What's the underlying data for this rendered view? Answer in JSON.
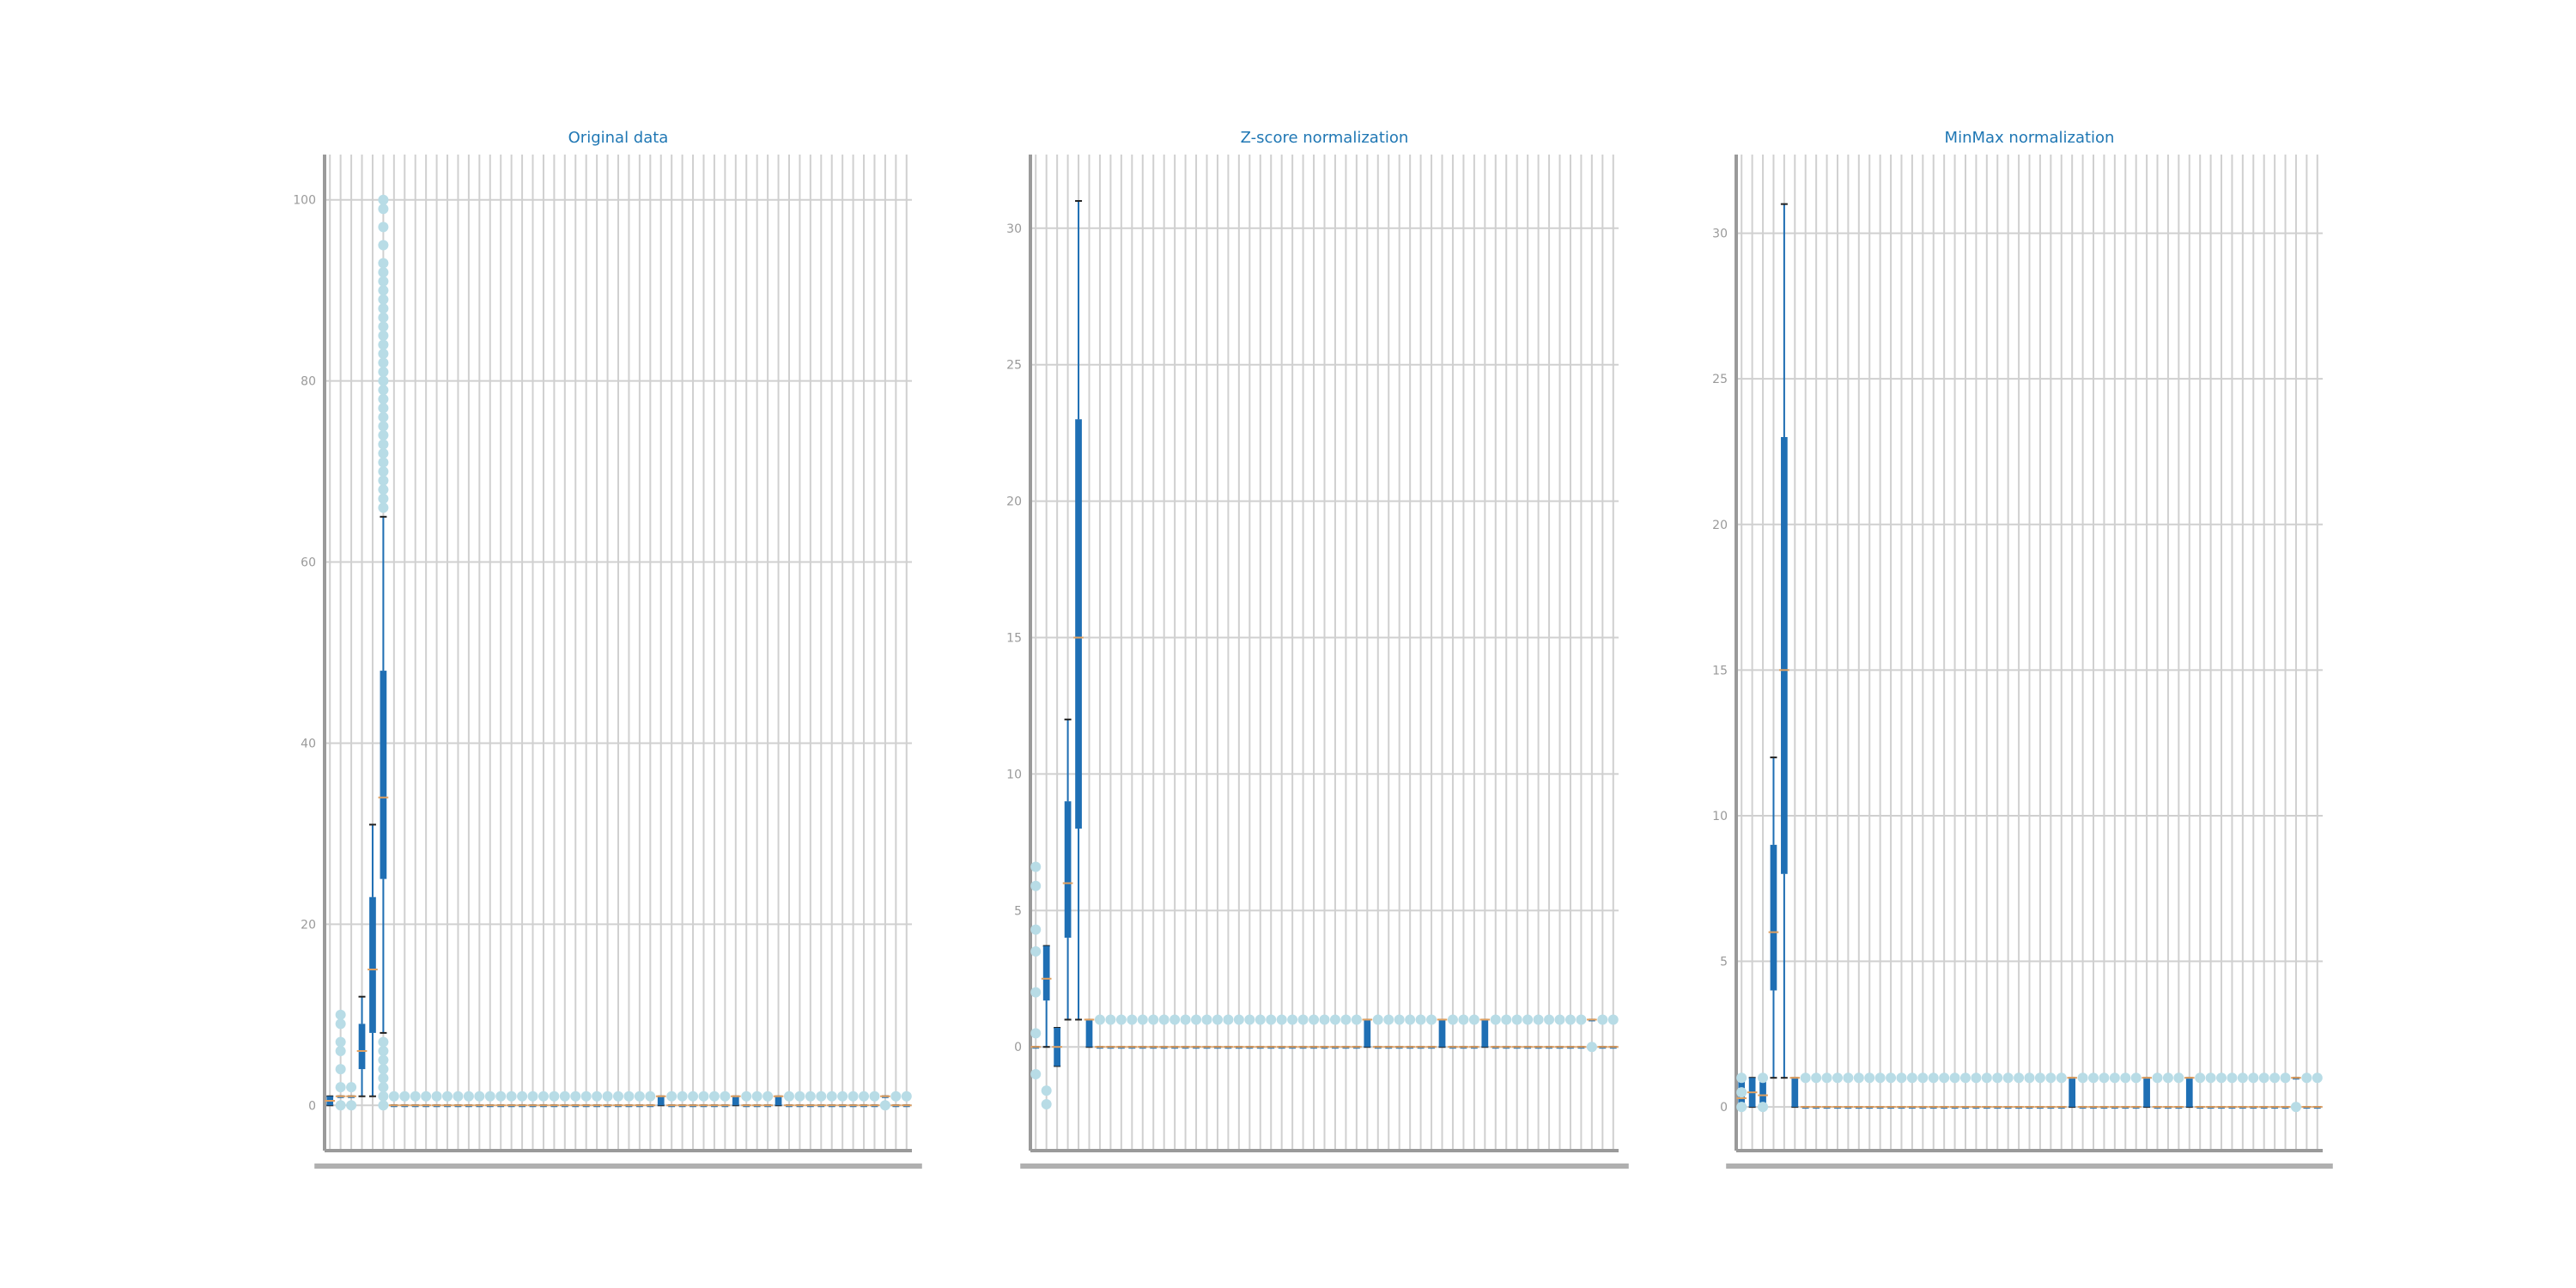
{
  "chart_data": [
    {
      "type": "box",
      "title": "Original data",
      "ylim": [
        -5,
        105
      ],
      "yticks": [
        0,
        20,
        40,
        60,
        80,
        100
      ],
      "grid": true,
      "n_columns": 55,
      "boxes": [
        {
          "index": 0,
          "q1": 0,
          "median": 0.5,
          "q3": 1,
          "whisker_low": 0,
          "whisker_high": 1,
          "outliers": []
        },
        {
          "index": 1,
          "q1": 1,
          "median": 1,
          "q3": 1,
          "whisker_low": 1,
          "whisker_high": 1,
          "outliers": [
            0,
            2,
            4,
            6,
            7,
            9,
            10
          ]
        },
        {
          "index": 2,
          "q1": 1,
          "median": 1,
          "q3": 1,
          "whisker_low": 1,
          "whisker_high": 1,
          "outliers": [
            0,
            2
          ]
        },
        {
          "index": 3,
          "q1": 4,
          "median": 6,
          "q3": 9,
          "whisker_low": 1,
          "whisker_high": 12,
          "outliers": []
        },
        {
          "index": 4,
          "q1": 8,
          "median": 15,
          "q3": 23,
          "whisker_low": 1,
          "whisker_high": 31,
          "outliers": []
        },
        {
          "index": 5,
          "q1": 25,
          "median": 34,
          "q3": 48,
          "whisker_low": 8,
          "whisker_high": 65,
          "outliers": [
            0,
            1,
            2,
            3,
            4,
            5,
            6,
            7,
            66,
            67,
            68,
            69,
            70,
            71,
            72,
            73,
            74,
            75,
            76,
            77,
            78,
            79,
            80,
            81,
            82,
            83,
            84,
            85,
            86,
            87,
            88,
            89,
            90,
            91,
            92,
            93,
            95,
            97,
            99,
            100
          ]
        },
        {
          "index": 31,
          "q1": 0,
          "median": 1,
          "q3": 1,
          "whisker_low": 0,
          "whisker_high": 1,
          "outliers": []
        },
        {
          "index": 38,
          "q1": 0,
          "median": 1,
          "q3": 1,
          "whisker_low": 0,
          "whisker_high": 1,
          "outliers": []
        },
        {
          "index": 42,
          "q1": 0,
          "median": 1,
          "q3": 1,
          "whisker_low": 0,
          "whisker_high": 1,
          "outliers": []
        },
        {
          "index": 52,
          "q1": 1,
          "median": 1,
          "q3": 1,
          "whisker_low": 1,
          "whisker_high": 1,
          "outliers": [
            0
          ]
        }
      ],
      "default_box": {
        "q1": 0,
        "median": 0,
        "q3": 0,
        "whisker_low": 0,
        "whisker_high": 0,
        "outliers": [
          1
        ]
      }
    },
    {
      "type": "box",
      "title": "Z-score normalization",
      "ylim": [
        -3.8,
        32.7
      ],
      "yticks": [
        0,
        5,
        10,
        15,
        20,
        25,
        30
      ],
      "grid": true,
      "n_columns": 55,
      "boxes": [
        {
          "index": 0,
          "q1": 0,
          "median": 0,
          "q3": 0,
          "whisker_low": 0,
          "whisker_high": 0,
          "outliers": [
            -1,
            0.5,
            2,
            3.5,
            4.3,
            5.9,
            6.6
          ]
        },
        {
          "index": 1,
          "q1": 1.7,
          "median": 2.5,
          "q3": 3.7,
          "whisker_low": 0,
          "whisker_high": 3.7,
          "outliers": [
            -1.6,
            -2.1
          ]
        },
        {
          "index": 2,
          "q1": -0.7,
          "median": 0,
          "q3": 0.7,
          "whisker_low": -0.7,
          "whisker_high": 0.7,
          "outliers": []
        },
        {
          "index": 3,
          "q1": 4,
          "median": 6,
          "q3": 9,
          "whisker_low": 1,
          "whisker_high": 12,
          "outliers": []
        },
        {
          "index": 4,
          "q1": 8,
          "median": 15,
          "q3": 23,
          "whisker_low": 1,
          "whisker_high": 31,
          "outliers": []
        },
        {
          "index": 5,
          "q1": 0,
          "median": 1,
          "q3": 1,
          "whisker_low": 0,
          "whisker_high": 1,
          "outliers": []
        },
        {
          "index": 31,
          "q1": 0,
          "median": 1,
          "q3": 1,
          "whisker_low": 0,
          "whisker_high": 1,
          "outliers": []
        },
        {
          "index": 38,
          "q1": 0,
          "median": 1,
          "q3": 1,
          "whisker_low": 0,
          "whisker_high": 1,
          "outliers": []
        },
        {
          "index": 42,
          "q1": 0,
          "median": 1,
          "q3": 1,
          "whisker_low": 0,
          "whisker_high": 1,
          "outliers": []
        },
        {
          "index": 52,
          "q1": 1,
          "median": 1,
          "q3": 1,
          "whisker_low": 1,
          "whisker_high": 1,
          "outliers": [
            0
          ]
        }
      ],
      "default_box": {
        "q1": 0,
        "median": 0,
        "q3": 0,
        "whisker_low": 0,
        "whisker_high": 0,
        "outliers": [
          1
        ]
      }
    },
    {
      "type": "box",
      "title": "MinMax normalization",
      "ylim": [
        -1.5,
        32.7
      ],
      "yticks": [
        0,
        5,
        10,
        15,
        20,
        25,
        30
      ],
      "grid": true,
      "n_columns": 55,
      "boxes": [
        {
          "index": 0,
          "q1": 0,
          "median": 0.3,
          "q3": 1,
          "whisker_low": 0,
          "whisker_high": 1,
          "outliers": [
            0,
            0.5,
            1
          ]
        },
        {
          "index": 1,
          "q1": 0,
          "median": 0.5,
          "q3": 1,
          "whisker_low": 0,
          "whisker_high": 1,
          "outliers": []
        },
        {
          "index": 2,
          "q1": 0,
          "median": 0.4,
          "q3": 1,
          "whisker_low": 0,
          "whisker_high": 1,
          "outliers": [
            0,
            1
          ]
        },
        {
          "index": 3,
          "q1": 4,
          "median": 6,
          "q3": 9,
          "whisker_low": 1,
          "whisker_high": 12,
          "outliers": []
        },
        {
          "index": 4,
          "q1": 8,
          "median": 15,
          "q3": 23,
          "whisker_low": 1,
          "whisker_high": 31,
          "outliers": []
        },
        {
          "index": 5,
          "q1": 0,
          "median": 1,
          "q3": 1,
          "whisker_low": 0,
          "whisker_high": 1,
          "outliers": []
        },
        {
          "index": 31,
          "q1": 0,
          "median": 1,
          "q3": 1,
          "whisker_low": 0,
          "whisker_high": 1,
          "outliers": []
        },
        {
          "index": 38,
          "q1": 0,
          "median": 1,
          "q3": 1,
          "whisker_low": 0,
          "whisker_high": 1,
          "outliers": []
        },
        {
          "index": 42,
          "q1": 0,
          "median": 1,
          "q3": 1,
          "whisker_low": 0,
          "whisker_high": 1,
          "outliers": []
        },
        {
          "index": 52,
          "q1": 1,
          "median": 1,
          "q3": 1,
          "whisker_low": 1,
          "whisker_high": 1,
          "outliers": [
            0
          ]
        }
      ],
      "default_box": {
        "q1": 0,
        "median": 0,
        "q3": 0,
        "whisker_low": 0,
        "whisker_high": 0,
        "outliers": [
          1
        ]
      }
    }
  ],
  "colors": {
    "box": "#1f6fb4",
    "median": "#e0a060",
    "outlier": "#b8dce6",
    "whisker": "#1f6fb4",
    "grid": "#d0d0d0",
    "axis": "#9a9a9a",
    "title": "#1f77b4"
  }
}
